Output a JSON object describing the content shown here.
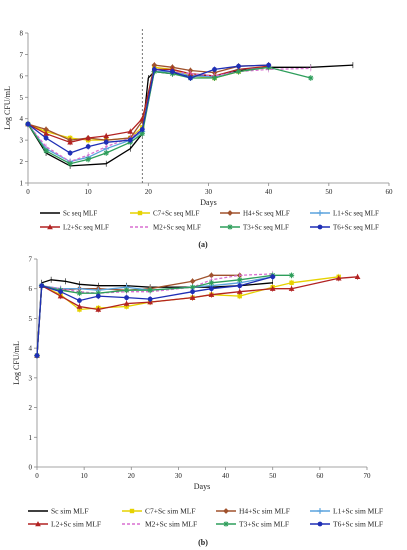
{
  "chart_data": [
    {
      "type": "line",
      "panel_label": "(a)",
      "xlabel": "Days",
      "ylabel": "Log CFU/mL",
      "xlim": [
        0,
        60
      ],
      "ylim": [
        1,
        8
      ],
      "xticks": [
        0,
        10,
        20,
        30,
        40,
        50,
        60
      ],
      "yticks": [
        1,
        2,
        3,
        4,
        5,
        6,
        7,
        8
      ],
      "grid": false,
      "legend_position": "bottom",
      "annotation": {
        "type": "vertical-dashed-line",
        "x": 19
      },
      "series": [
        {
          "name": "Sc seq MLF",
          "color": "#000000",
          "marker": "none",
          "dash": false,
          "x": [
            0,
            3,
            7,
            13,
            17,
            19,
            20,
            21,
            24,
            27,
            31,
            35,
            40,
            47,
            54
          ],
          "y": [
            3.75,
            2.4,
            1.8,
            1.9,
            2.6,
            3.3,
            5.9,
            6.2,
            6.1,
            6.0,
            6.0,
            6.25,
            6.4,
            6.4,
            6.5
          ]
        },
        {
          "name": "C7+Sc seq MLF",
          "color": "#e6d200",
          "marker": "square",
          "dash": false,
          "x": [
            0,
            3,
            7,
            10,
            13,
            17,
            19,
            21,
            24,
            27,
            31,
            35,
            40
          ],
          "y": [
            3.75,
            3.4,
            3.1,
            3.0,
            3.0,
            3.1,
            3.6,
            6.4,
            6.3,
            6.0,
            5.9,
            6.2,
            6.4
          ]
        },
        {
          "name": "H4+Sc seq MLF",
          "color": "#a0522d",
          "marker": "diamond",
          "dash": false,
          "x": [
            0,
            3,
            7,
            10,
            13,
            17,
            19,
            21,
            24,
            27,
            31,
            35,
            40
          ],
          "y": [
            3.75,
            3.5,
            3.0,
            3.1,
            3.0,
            3.1,
            3.9,
            6.5,
            6.4,
            6.25,
            6.15,
            6.45,
            6.5
          ]
        },
        {
          "name": "L1+Sc seq MLF",
          "color": "#5ba3dd",
          "marker": "plus",
          "dash": false,
          "x": [
            0,
            3,
            7,
            10,
            13,
            17,
            19,
            21,
            24,
            27,
            31,
            35,
            40
          ],
          "y": [
            3.75,
            2.6,
            2.0,
            2.2,
            2.6,
            3.0,
            3.4,
            6.2,
            6.2,
            6.0,
            5.95,
            6.3,
            6.4
          ]
        },
        {
          "name": "L2+Sc seq MLF",
          "color": "#b22222",
          "marker": "triangle",
          "dash": false,
          "x": [
            0,
            3,
            7,
            10,
            13,
            17,
            19,
            21,
            24,
            27,
            31,
            35,
            40
          ],
          "y": [
            3.75,
            3.3,
            2.9,
            3.1,
            3.2,
            3.4,
            4.0,
            6.3,
            6.3,
            6.1,
            6.0,
            6.3,
            6.45
          ]
        },
        {
          "name": "M2+Sc seq MLF",
          "color": "#d86fd0",
          "marker": "none",
          "dash": true,
          "x": [
            0,
            3,
            7,
            10,
            13,
            17,
            19,
            21,
            24,
            27,
            31,
            35,
            40,
            47
          ],
          "y": [
            3.75,
            2.7,
            2.0,
            2.3,
            2.7,
            3.1,
            3.5,
            6.3,
            6.2,
            6.1,
            6.0,
            6.2,
            6.3,
            6.35
          ]
        },
        {
          "name": "T3+Sc seq MLF",
          "color": "#2e9e5b",
          "marker": "asterisk",
          "dash": false,
          "x": [
            0,
            3,
            7,
            10,
            13,
            17,
            19,
            21,
            24,
            27,
            31,
            35,
            40,
            47
          ],
          "y": [
            3.75,
            2.5,
            1.9,
            2.1,
            2.4,
            2.9,
            3.3,
            6.2,
            6.1,
            5.9,
            5.9,
            6.2,
            6.4,
            5.9
          ]
        },
        {
          "name": "T6+Sc seq MLF",
          "color": "#1f2fb5",
          "marker": "circle",
          "dash": false,
          "x": [
            0,
            3,
            7,
            10,
            13,
            17,
            19,
            21,
            24,
            27,
            31,
            35,
            40
          ],
          "y": [
            3.75,
            3.1,
            2.4,
            2.7,
            2.9,
            3.0,
            3.5,
            6.3,
            6.2,
            5.9,
            6.3,
            6.45,
            6.5
          ]
        }
      ]
    },
    {
      "type": "line",
      "panel_label": "(b)",
      "xlabel": "Days",
      "ylabel": "Log CFU/mL",
      "xlim": [
        0,
        70
      ],
      "ylim": [
        0,
        7
      ],
      "xticks": [
        0,
        10,
        20,
        30,
        40,
        50,
        60,
        70
      ],
      "yticks": [
        0,
        1,
        2,
        3,
        4,
        5,
        6,
        7
      ],
      "grid": false,
      "legend_position": "bottom",
      "series": [
        {
          "name": "Sc sim MLF",
          "color": "#000000",
          "marker": "none",
          "dash": false,
          "x": [
            0,
            1,
            3,
            6,
            9,
            13,
            19,
            24,
            33,
            37,
            43,
            50
          ],
          "y": [
            3.75,
            6.2,
            6.3,
            6.25,
            6.15,
            6.1,
            6.1,
            6.05,
            6.05,
            6.05,
            6.1,
            6.2
          ]
        },
        {
          "name": "C7+Sc sim MLF",
          "color": "#e6d200",
          "marker": "square",
          "dash": false,
          "x": [
            0,
            1,
            5,
            9,
            13,
            19,
            24,
            33,
            37,
            43,
            50,
            54,
            64
          ],
          "y": [
            3.75,
            6.1,
            5.8,
            5.3,
            5.35,
            5.4,
            5.55,
            5.7,
            5.8,
            5.75,
            6.05,
            6.2,
            6.4
          ]
        },
        {
          "name": "H4+Sc sim MLF",
          "color": "#a0522d",
          "marker": "diamond",
          "dash": false,
          "x": [
            0,
            1,
            5,
            9,
            13,
            19,
            24,
            33,
            37,
            43
          ],
          "y": [
            3.75,
            6.1,
            5.95,
            6.0,
            6.0,
            5.95,
            6.0,
            6.25,
            6.45,
            6.45
          ]
        },
        {
          "name": "L1+Sc sim MLF",
          "color": "#5ba3dd",
          "marker": "plus",
          "dash": false,
          "x": [
            0,
            1,
            5,
            9,
            13,
            19,
            24,
            33,
            37,
            43,
            50
          ],
          "y": [
            3.75,
            6.1,
            6.0,
            6.0,
            5.95,
            6.05,
            5.95,
            6.05,
            6.1,
            6.2,
            6.4
          ]
        },
        {
          "name": "L2+Sc sim MLF",
          "color": "#b22222",
          "marker": "triangle",
          "dash": false,
          "x": [
            0,
            1,
            5,
            9,
            13,
            19,
            24,
            33,
            37,
            43,
            50,
            54,
            64,
            68
          ],
          "y": [
            3.75,
            6.1,
            5.75,
            5.4,
            5.3,
            5.5,
            5.55,
            5.7,
            5.8,
            5.9,
            6.0,
            6.0,
            6.35,
            6.4
          ]
        },
        {
          "name": "M2+Sc sim MLF",
          "color": "#d86fd0",
          "marker": "none",
          "dash": true,
          "x": [
            0,
            1,
            5,
            9,
            13,
            19,
            24,
            33,
            37,
            43,
            50
          ],
          "y": [
            3.75,
            6.1,
            6.0,
            5.9,
            5.85,
            5.9,
            5.9,
            6.05,
            6.3,
            6.45,
            6.5
          ]
        },
        {
          "name": "T3+Sc sim MLF",
          "color": "#2e9e5b",
          "marker": "asterisk",
          "dash": false,
          "x": [
            0,
            1,
            5,
            9,
            13,
            19,
            24,
            33,
            37,
            43,
            50,
            54
          ],
          "y": [
            3.75,
            6.1,
            5.95,
            5.85,
            5.85,
            5.95,
            5.95,
            6.05,
            6.2,
            6.3,
            6.45,
            6.45
          ]
        },
        {
          "name": "T6+Sc sim MLF",
          "color": "#1f2fb5",
          "marker": "circle",
          "dash": false,
          "x": [
            0,
            1,
            5,
            9,
            13,
            19,
            24,
            33,
            37,
            43,
            50
          ],
          "y": [
            3.75,
            6.1,
            5.9,
            5.6,
            5.75,
            5.7,
            5.65,
            5.9,
            6.0,
            6.1,
            6.4
          ]
        }
      ]
    }
  ]
}
